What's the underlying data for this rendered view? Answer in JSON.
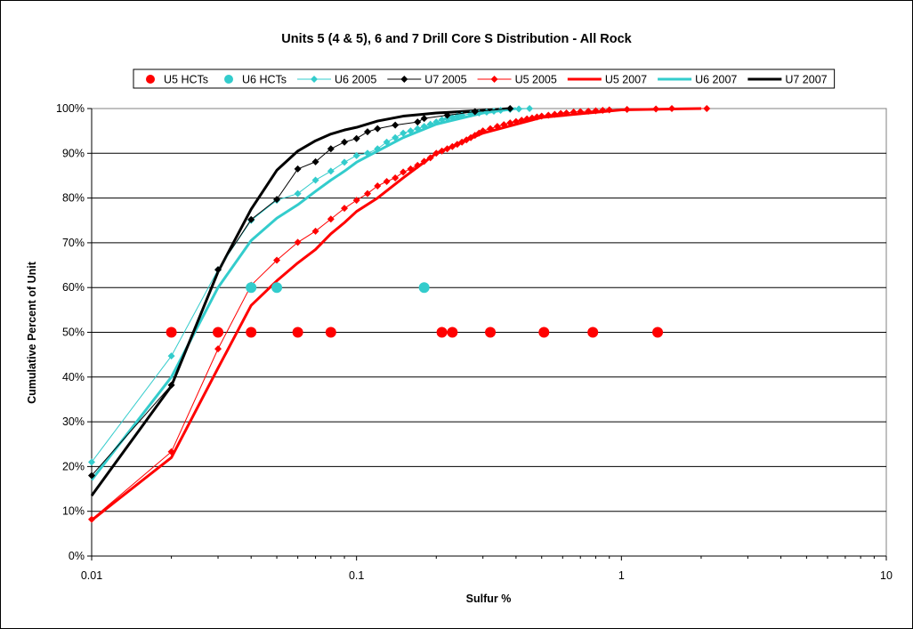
{
  "chart_data": {
    "type": "scatter",
    "title": "Units 5 (4 & 5), 6 and 7 Drill Core S Distribution - All Rock",
    "xlabel": "Sulfur %",
    "ylabel": "Cumulative Percent of Unit",
    "x_scale": "log",
    "xlim": [
      0.01,
      10
    ],
    "ylim": [
      0,
      1
    ],
    "x_ticks": [
      {
        "value": 0.01,
        "label": "0.01"
      },
      {
        "value": 0.1,
        "label": "0.1"
      },
      {
        "value": 1,
        "label": "1"
      },
      {
        "value": 10,
        "label": "10"
      }
    ],
    "y_ticks": [
      {
        "value": 0,
        "label": "0%"
      },
      {
        "value": 0.1,
        "label": "10%"
      },
      {
        "value": 0.2,
        "label": "20%"
      },
      {
        "value": 0.3,
        "label": "30%"
      },
      {
        "value": 0.4,
        "label": "40%"
      },
      {
        "value": 0.5,
        "label": "50%"
      },
      {
        "value": 0.6,
        "label": "60%"
      },
      {
        "value": 0.7,
        "label": "70%"
      },
      {
        "value": 0.8,
        "label": "80%"
      },
      {
        "value": 0.9,
        "label": "90%"
      },
      {
        "value": 1,
        "label": "100%"
      }
    ],
    "grid": "horizontal",
    "legend_position": "top",
    "series": [
      {
        "name": "U5 HCTs",
        "style": "markers",
        "marker": "circle",
        "color": "#ff0000",
        "x": [
          0.02,
          0.03,
          0.04,
          0.06,
          0.08,
          0.21,
          0.23,
          0.32,
          0.51,
          0.78,
          1.37
        ],
        "y": [
          0.5,
          0.5,
          0.5,
          0.5,
          0.5,
          0.5,
          0.5,
          0.5,
          0.5,
          0.5,
          0.5
        ]
      },
      {
        "name": "U6 HCTs",
        "style": "markers",
        "marker": "circle",
        "color": "#33cccc",
        "x": [
          0.04,
          0.05,
          0.18
        ],
        "y": [
          0.6,
          0.6,
          0.6
        ]
      },
      {
        "name": "U6 2005",
        "style": "line-markers",
        "marker": "diamond",
        "color": "#33cccc",
        "x": [
          0.01,
          0.02,
          0.03,
          0.04,
          0.05,
          0.06,
          0.07,
          0.08,
          0.09,
          0.1,
          0.11,
          0.12,
          0.13,
          0.14,
          0.15,
          0.16,
          0.17,
          0.18,
          0.19,
          0.2,
          0.21,
          0.22,
          0.23,
          0.24,
          0.25,
          0.27,
          0.29,
          0.31,
          0.33,
          0.35,
          0.38,
          0.41,
          0.45
        ],
        "y": [
          0.21,
          0.447,
          0.64,
          0.75,
          0.795,
          0.81,
          0.84,
          0.86,
          0.88,
          0.895,
          0.9,
          0.91,
          0.925,
          0.935,
          0.945,
          0.95,
          0.955,
          0.96,
          0.965,
          0.97,
          0.975,
          0.978,
          0.98,
          0.983,
          0.985,
          0.988,
          0.99,
          0.992,
          0.994,
          0.996,
          0.998,
          0.999,
          1.0
        ]
      },
      {
        "name": "U7 2005",
        "style": "line-markers",
        "marker": "diamond",
        "color": "#000000",
        "x": [
          0.01,
          0.02,
          0.03,
          0.04,
          0.05,
          0.06,
          0.07,
          0.08,
          0.09,
          0.1,
          0.11,
          0.12,
          0.14,
          0.17,
          0.18,
          0.22,
          0.28,
          0.38
        ],
        "y": [
          0.18,
          0.382,
          0.64,
          0.752,
          0.797,
          0.865,
          0.881,
          0.91,
          0.925,
          0.933,
          0.948,
          0.955,
          0.963,
          0.97,
          0.978,
          0.985,
          0.993,
          1.0
        ]
      },
      {
        "name": "U5 2005",
        "style": "line-markers",
        "marker": "diamond",
        "color": "#ff0000",
        "x": [
          0.01,
          0.02,
          0.03,
          0.04,
          0.05,
          0.06,
          0.07,
          0.08,
          0.09,
          0.1,
          0.11,
          0.12,
          0.13,
          0.14,
          0.15,
          0.16,
          0.17,
          0.18,
          0.19,
          0.2,
          0.21,
          0.22,
          0.23,
          0.24,
          0.25,
          0.26,
          0.27,
          0.28,
          0.29,
          0.3,
          0.32,
          0.34,
          0.36,
          0.38,
          0.4,
          0.42,
          0.44,
          0.46,
          0.48,
          0.5,
          0.53,
          0.56,
          0.59,
          0.62,
          0.66,
          0.7,
          0.75,
          0.8,
          0.85,
          0.9,
          1.05,
          1.35,
          1.55,
          2.1
        ],
        "y": [
          0.082,
          0.233,
          0.463,
          0.605,
          0.661,
          0.701,
          0.726,
          0.753,
          0.777,
          0.795,
          0.81,
          0.827,
          0.837,
          0.845,
          0.858,
          0.865,
          0.873,
          0.882,
          0.89,
          0.9,
          0.905,
          0.91,
          0.915,
          0.92,
          0.925,
          0.93,
          0.935,
          0.94,
          0.945,
          0.95,
          0.955,
          0.96,
          0.964,
          0.968,
          0.971,
          0.974,
          0.977,
          0.979,
          0.981,
          0.983,
          0.985,
          0.987,
          0.989,
          0.99,
          0.992,
          0.993,
          0.994,
          0.995,
          0.996,
          0.997,
          0.998,
          0.999,
          1.0,
          1.0
        ]
      },
      {
        "name": "U5 2007",
        "style": "line",
        "color": "#ff0000",
        "x": [
          0.01,
          0.02,
          0.03,
          0.04,
          0.05,
          0.06,
          0.07,
          0.08,
          0.09,
          0.1,
          0.12,
          0.15,
          0.2,
          0.3,
          0.5,
          1.0,
          2.0
        ],
        "y": [
          0.08,
          0.22,
          0.42,
          0.56,
          0.615,
          0.655,
          0.685,
          0.72,
          0.745,
          0.77,
          0.8,
          0.845,
          0.9,
          0.945,
          0.98,
          0.997,
          1.0
        ]
      },
      {
        "name": "U6 2007",
        "style": "line",
        "color": "#33cccc",
        "x": [
          0.01,
          0.02,
          0.03,
          0.04,
          0.05,
          0.06,
          0.07,
          0.08,
          0.09,
          0.1,
          0.12,
          0.15,
          0.2,
          0.3,
          0.4
        ],
        "y": [
          0.17,
          0.4,
          0.6,
          0.705,
          0.755,
          0.785,
          0.815,
          0.84,
          0.86,
          0.88,
          0.905,
          0.935,
          0.965,
          0.99,
          1.0
        ]
      },
      {
        "name": "U7 2007",
        "style": "line",
        "color": "#000000",
        "x": [
          0.01,
          0.02,
          0.03,
          0.04,
          0.05,
          0.06,
          0.07,
          0.08,
          0.09,
          0.1,
          0.12,
          0.15,
          0.2,
          0.3,
          0.38
        ],
        "y": [
          0.135,
          0.38,
          0.635,
          0.775,
          0.862,
          0.905,
          0.928,
          0.943,
          0.952,
          0.958,
          0.972,
          0.983,
          0.99,
          0.996,
          1.0
        ]
      }
    ]
  }
}
